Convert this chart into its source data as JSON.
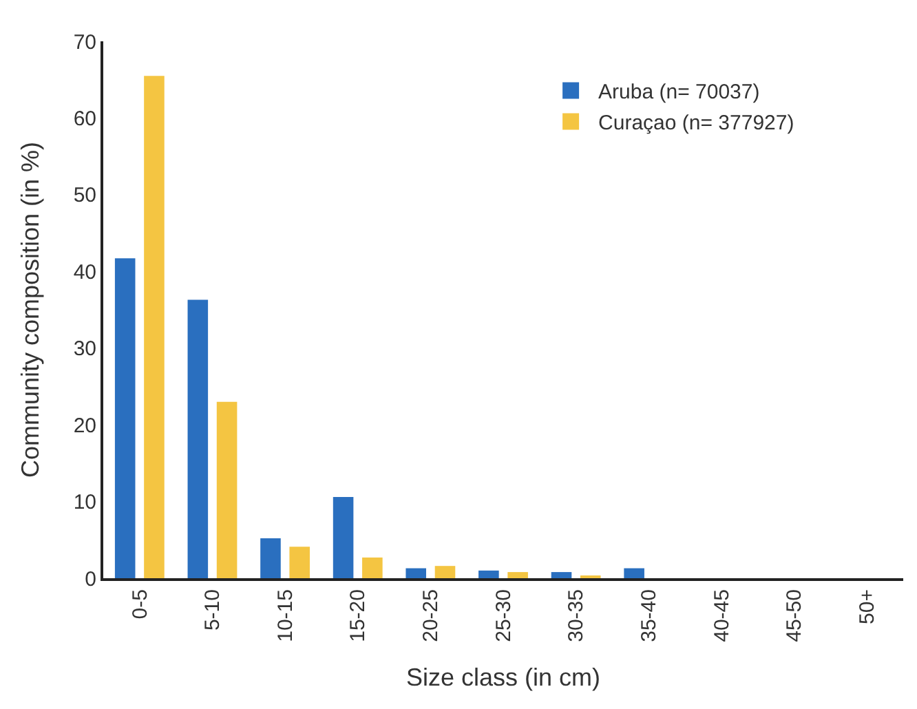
{
  "chart_data": {
    "type": "bar",
    "xlabel": "Size class (in cm)",
    "ylabel": "Community composition (in %)",
    "categories": [
      "0-5",
      "5-10",
      "10-15",
      "15-20",
      "20-25",
      "25-30",
      "30-35",
      "35-40",
      "40-45",
      "45-50",
      "50+"
    ],
    "series": [
      {
        "name": "Aruba (n= 70037)",
        "color": "#2a6fbf",
        "values": [
          41.7,
          36.3,
          5.2,
          10.6,
          1.3,
          1.0,
          0.8,
          1.3,
          0,
          0,
          0
        ]
      },
      {
        "name": "Curaçao (n= 377927)",
        "color": "#f4c542",
        "values": [
          65.5,
          23,
          4.1,
          2.7,
          1.6,
          0.8,
          0.3,
          0,
          0,
          0,
          0
        ]
      }
    ],
    "ylim": [
      0,
      70
    ],
    "yticks": [
      0,
      10,
      20,
      30,
      40,
      50,
      60,
      70
    ],
    "grid": false,
    "legend": "top right"
  }
}
